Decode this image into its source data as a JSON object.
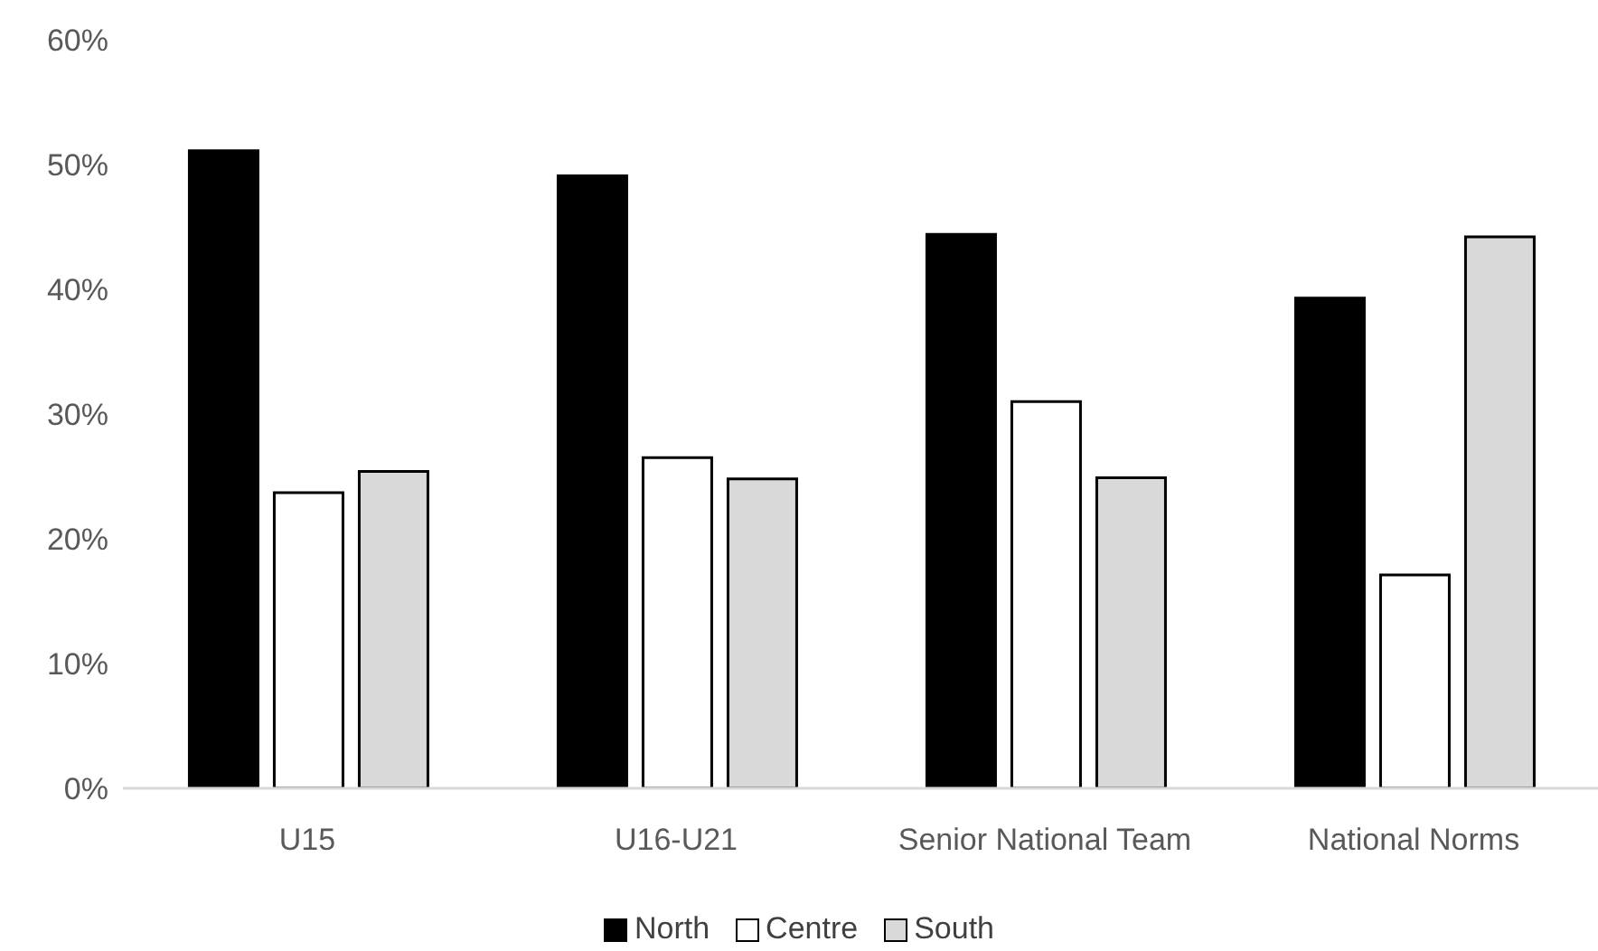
{
  "chart_data": {
    "type": "bar",
    "categories": [
      "U15",
      "U16-U21",
      "Senior National Team",
      "National Norms"
    ],
    "series": [
      {
        "name": "North",
        "color": "#000000",
        "values": [
          51.1,
          49.1,
          44.4,
          39.3
        ]
      },
      {
        "name": "Centre",
        "color": "#ffffff",
        "values": [
          23.7,
          26.5,
          31.0,
          17.1
        ]
      },
      {
        "name": "South",
        "color": "#d9d9d9",
        "values": [
          25.4,
          24.8,
          24.9,
          44.2
        ]
      }
    ],
    "ylim": [
      0,
      60
    ],
    "yticks": [
      {
        "value": 0,
        "label": "0%"
      },
      {
        "value": 10,
        "label": "10%"
      },
      {
        "value": 20,
        "label": "20%"
      },
      {
        "value": 30,
        "label": "30%"
      },
      {
        "value": 40,
        "label": "40%"
      },
      {
        "value": 50,
        "label": "50%"
      },
      {
        "value": 60,
        "label": "60%"
      }
    ],
    "legend": "bottom"
  }
}
